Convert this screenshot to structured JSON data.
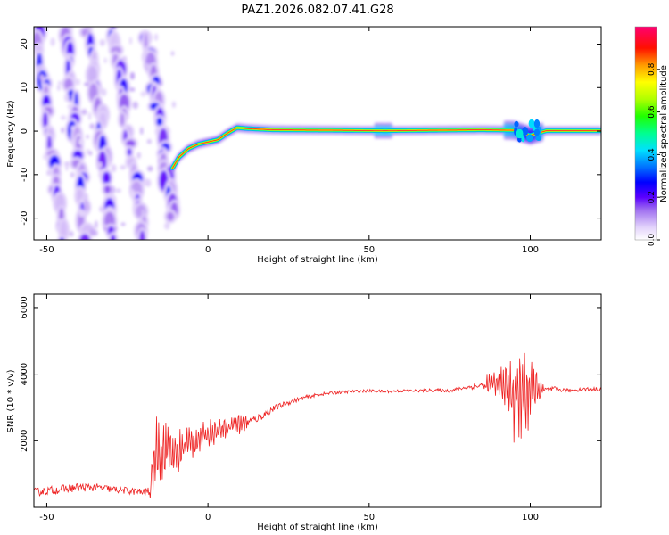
{
  "title": "PAZ1.2026.082.07.41.G28",
  "chart_data": [
    {
      "type": "heatmap",
      "xlabel": "Height of straight line (km)",
      "ylabel": "Frequency (Hz)",
      "xlim": [
        -54,
        122
      ],
      "ylim": [
        -25,
        24
      ],
      "xticks": [
        -50,
        0,
        50,
        100
      ],
      "yticks": [
        -20,
        -10,
        0,
        10,
        20
      ],
      "colorbar": {
        "label": "Normalized spectral amplitude",
        "range": [
          0,
          1
        ],
        "ticks": [
          0.0,
          0.2,
          0.4,
          0.6,
          0.8
        ],
        "colors": [
          "#ffffff",
          "#c8a8f8",
          "#6a00ff",
          "#0000ff",
          "#0090ff",
          "#00ffff",
          "#00ff60",
          "#40ff00",
          "#c8ff00",
          "#ffff00",
          "#ff9000",
          "#ff0000",
          "#ff0080"
        ]
      },
      "stripes": [
        {
          "x_start": -53,
          "x_end": -45,
          "y_start": 24,
          "y_end": -25
        },
        {
          "x_start": -44,
          "x_end": -38,
          "y_start": 24,
          "y_end": -25
        },
        {
          "x_start": -37,
          "x_end": -29,
          "y_start": 24,
          "y_end": -25
        },
        {
          "x_start": -30,
          "x_end": -20,
          "y_start": 24,
          "y_end": -25
        },
        {
          "x_start": -19,
          "x_end": -11,
          "y_start": 22,
          "y_end": -20
        }
      ],
      "carrier": [
        {
          "x": -11,
          "y": -8.5,
          "amp": 0.35
        },
        {
          "x": -9,
          "y": -6,
          "amp": 0.35
        },
        {
          "x": -6,
          "y": -4,
          "amp": 0.4
        },
        {
          "x": -3,
          "y": -3,
          "amp": 0.5
        },
        {
          "x": 0,
          "y": -2.5,
          "amp": 0.55
        },
        {
          "x": 3,
          "y": -2,
          "amp": 0.55
        },
        {
          "x": 6,
          "y": -0.5,
          "amp": 0.6
        },
        {
          "x": 9,
          "y": 0.8,
          "amp": 0.75
        },
        {
          "x": 12,
          "y": 0.6,
          "amp": 0.85
        },
        {
          "x": 20,
          "y": 0.3,
          "amp": 0.95
        },
        {
          "x": 40,
          "y": 0.2,
          "amp": 1.0
        },
        {
          "x": 55,
          "y": 0.1,
          "amp": 0.9
        },
        {
          "x": 70,
          "y": 0.2,
          "amp": 1.0
        },
        {
          "x": 85,
          "y": 0.3,
          "amp": 0.98
        },
        {
          "x": 95,
          "y": 0.2,
          "amp": 0.85
        },
        {
          "x": 100,
          "y": -1.0,
          "amp": 0.6
        },
        {
          "x": 105,
          "y": 0.1,
          "amp": 0.95
        },
        {
          "x": 122,
          "y": 0.1,
          "amp": 1.0
        }
      ]
    },
    {
      "type": "line",
      "xlabel": "Height of straight line (km)",
      "ylabel": "SNR (10 * v/v)",
      "xlim": [
        -54,
        122
      ],
      "ylim": [
        0,
        6400
      ],
      "xticks": [
        -50,
        0,
        50,
        100
      ],
      "yticks": [
        2000,
        4000,
        6000
      ],
      "color": "#ee2222",
      "series": [
        {
          "name": "SNR",
          "x": [
            -54,
            -50,
            -45,
            -40,
            -35,
            -30,
            -25,
            -20,
            -18,
            -16,
            -14,
            -12,
            -10,
            -7,
            -4,
            0,
            4,
            8,
            12,
            16,
            20,
            25,
            30,
            35,
            40,
            45,
            50,
            55,
            60,
            65,
            70,
            75,
            80,
            84,
            88,
            92,
            94,
            96,
            98,
            100,
            102,
            104,
            108,
            112,
            116,
            122
          ],
          "y": [
            450,
            500,
            550,
            600,
            600,
            550,
            500,
            450,
            500,
            1800,
            1700,
            1800,
            1500,
            1900,
            2000,
            2200,
            2350,
            2500,
            2550,
            2700,
            2950,
            3150,
            3300,
            3400,
            3450,
            3480,
            3500,
            3480,
            3500,
            3500,
            3520,
            3500,
            3600,
            3650,
            3700,
            3700,
            3400,
            3300,
            3500,
            3400,
            3600,
            3500,
            3550,
            3500,
            3550,
            3550
          ],
          "noise": [
            250,
            250,
            260,
            260,
            240,
            220,
            220,
            220,
            300,
            800,
            800,
            700,
            600,
            500,
            400,
            350,
            300,
            300,
            280,
            250,
            200,
            150,
            120,
            100,
            100,
            90,
            90,
            90,
            90,
            90,
            100,
            100,
            120,
            200,
            300,
            500,
            900,
            1400,
            1200,
            900,
            500,
            250,
            150,
            120,
            120,
            120
          ]
        }
      ]
    }
  ]
}
